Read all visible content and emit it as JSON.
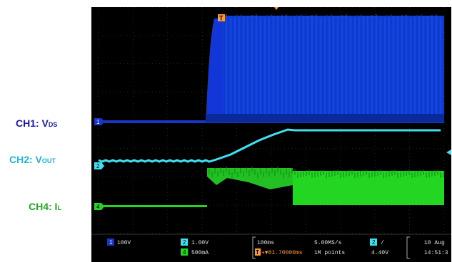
{
  "labels": {
    "ch1": {
      "main": "CH1: V",
      "sub": "DS",
      "color": "#1a1aa6"
    },
    "ch2": {
      "main": "CH2: V",
      "sub": "OUT",
      "color": "#1fb6d6"
    },
    "ch4": {
      "main": "CH4: I",
      "sub": "L",
      "color": "#22aa22"
    }
  },
  "colors": {
    "ch1": "#0f3fcf",
    "ch1_dark": "#0a2a9a",
    "ch2": "#3fe0f0",
    "ch4": "#22d622",
    "trigger": "#ff9933",
    "grid": "#333333"
  },
  "markers": {
    "trigger": "T",
    "ch1": "1",
    "ch2": "2",
    "ch4": "4"
  },
  "status_bar": {
    "ch1_badge": "1",
    "ch1_scale": "100V",
    "ch2_badge": "2",
    "ch2_scale": "1.00V",
    "ch4_badge": "4",
    "ch4_scale": "500mA",
    "timebase": "100ms",
    "sample_rate": "5.00MS/s",
    "record_length": "1M points",
    "trigger_label": "T",
    "trigger_position": "+▼81.70000ms",
    "trigger_ch_badge": "2",
    "trigger_slope": "/",
    "trigger_level": "4.40V",
    "date": "10 Aug",
    "time": "14:51:3"
  }
}
